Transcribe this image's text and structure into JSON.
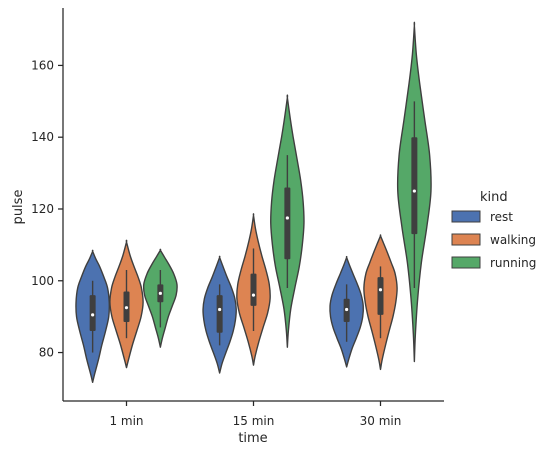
{
  "chart_data": {
    "type": "violin",
    "xlabel": "time",
    "ylabel": "pulse",
    "categories": [
      "1 min",
      "15 min",
      "30 min"
    ],
    "yticks": [
      80,
      100,
      120,
      140,
      160
    ],
    "ylim": [
      66.5,
      176
    ],
    "grid": false,
    "legend": {
      "title": "kind",
      "position": "right",
      "entries": [
        "rest",
        "walking",
        "running"
      ]
    },
    "colors": {
      "rest": "#4c72b0",
      "walking": "#dd8452",
      "running": "#55a868",
      "outline": "#3f3f3f"
    },
    "series": [
      {
        "name": "rest",
        "color": "#4c72b0",
        "violins": [
          {
            "category": "1 min",
            "min": 71.7,
            "max": 108.2,
            "whisker_low": 80,
            "q1": 86,
            "median": 90.5,
            "q3": 96,
            "whisker_high": 100,
            "profile": [
              [
                71.7,
                0
              ],
              [
                74,
                0.12
              ],
              [
                78,
                0.35
              ],
              [
                82,
                0.55
              ],
              [
                86,
                0.78
              ],
              [
                90,
                0.97
              ],
              [
                94,
                1.0
              ],
              [
                98,
                0.9
              ],
              [
                101,
                0.68
              ],
              [
                104,
                0.42
              ],
              [
                106,
                0.2
              ],
              [
                108.2,
                0
              ]
            ]
          },
          {
            "category": "15 min",
            "min": 74.3,
            "max": 106.5,
            "whisker_low": 82,
            "q1": 85.5,
            "median": 92,
            "q3": 96,
            "whisker_high": 99,
            "profile": [
              [
                74.3,
                0
              ],
              [
                77,
                0.15
              ],
              [
                80,
                0.38
              ],
              [
                83,
                0.62
              ],
              [
                86,
                0.82
              ],
              [
                89,
                0.95
              ],
              [
                92,
                1.0
              ],
              [
                95,
                0.92
              ],
              [
                98,
                0.72
              ],
              [
                101,
                0.45
              ],
              [
                104,
                0.2
              ],
              [
                106.5,
                0
              ]
            ]
          },
          {
            "category": "30 min",
            "min": 76.0,
            "max": 106.5,
            "whisker_low": 83,
            "q1": 88.5,
            "median": 92,
            "q3": 95,
            "whisker_high": 99,
            "profile": [
              [
                76,
                0
              ],
              [
                78,
                0.12
              ],
              [
                81,
                0.32
              ],
              [
                84,
                0.58
              ],
              [
                87,
                0.82
              ],
              [
                90,
                0.97
              ],
              [
                93,
                1.0
              ],
              [
                96,
                0.88
              ],
              [
                99,
                0.65
              ],
              [
                102,
                0.38
              ],
              [
                104.5,
                0.16
              ],
              [
                106.5,
                0
              ]
            ]
          }
        ]
      },
      {
        "name": "walking",
        "color": "#dd8452",
        "violins": [
          {
            "category": "1 min",
            "min": 75.8,
            "max": 110.8,
            "whisker_low": 84,
            "q1": 88.5,
            "median": 92.5,
            "q3": 97,
            "whisker_high": 103,
            "profile": [
              [
                75.8,
                0
              ],
              [
                78,
                0.12
              ],
              [
                82,
                0.35
              ],
              [
                86,
                0.62
              ],
              [
                90,
                0.88
              ],
              [
                94,
                1.0
              ],
              [
                98,
                0.9
              ],
              [
                101,
                0.7
              ],
              [
                104,
                0.45
              ],
              [
                107,
                0.22
              ],
              [
                110.8,
                0
              ]
            ]
          },
          {
            "category": "15 min",
            "min": 76.5,
            "max": 118.2,
            "whisker_low": 86,
            "q1": 93,
            "median": 96,
            "q3": 102,
            "whisker_high": 109,
            "profile": [
              [
                76.5,
                0
              ],
              [
                79,
                0.1
              ],
              [
                83,
                0.32
              ],
              [
                87,
                0.58
              ],
              [
                91,
                0.85
              ],
              [
                95,
                1.0
              ],
              [
                99,
                0.95
              ],
              [
                103,
                0.75
              ],
              [
                107,
                0.5
              ],
              [
                111,
                0.28
              ],
              [
                114.5,
                0.12
              ],
              [
                118.2,
                0
              ]
            ]
          },
          {
            "category": "30 min",
            "min": 75.3,
            "max": 112.5,
            "whisker_low": 84,
            "q1": 90.5,
            "median": 97.5,
            "q3": 101,
            "whisker_high": 104,
            "profile": [
              [
                75.3,
                0
              ],
              [
                78,
                0.1
              ],
              [
                82,
                0.3
              ],
              [
                86,
                0.52
              ],
              [
                90,
                0.75
              ],
              [
                94,
                0.92
              ],
              [
                98,
                1.0
              ],
              [
                102,
                0.88
              ],
              [
                105,
                0.65
              ],
              [
                108,
                0.4
              ],
              [
                110.5,
                0.18
              ],
              [
                112.5,
                0
              ]
            ]
          }
        ]
      },
      {
        "name": "running",
        "color": "#55a868",
        "violins": [
          {
            "category": "1 min",
            "min": 81.5,
            "max": 108.5,
            "whisker_low": 87,
            "q1": 94,
            "median": 96.5,
            "q3": 99,
            "whisker_high": 103,
            "profile": [
              [
                81.5,
                0
              ],
              [
                84,
                0.12
              ],
              [
                87,
                0.3
              ],
              [
                90,
                0.48
              ],
              [
                93,
                0.72
              ],
              [
                96,
                0.95
              ],
              [
                99,
                1.0
              ],
              [
                102,
                0.8
              ],
              [
                104.5,
                0.52
              ],
              [
                106.5,
                0.26
              ],
              [
                108.5,
                0
              ]
            ]
          },
          {
            "category": "15 min",
            "min": 81.5,
            "max": 151.0,
            "whisker_low": 98,
            "q1": 106,
            "median": 117.5,
            "q3": 126,
            "whisker_high": 135,
            "profile": [
              [
                81.5,
                0
              ],
              [
                86,
                0.06
              ],
              [
                92,
                0.2
              ],
              [
                98,
                0.45
              ],
              [
                104,
                0.72
              ],
              [
                110,
                0.9
              ],
              [
                116,
                1.0
              ],
              [
                122,
                0.95
              ],
              [
                128,
                0.8
              ],
              [
                134,
                0.58
              ],
              [
                140,
                0.35
              ],
              [
                145,
                0.18
              ],
              [
                151,
                0
              ]
            ]
          },
          {
            "category": "30 min",
            "min": 77.5,
            "max": 171.0,
            "whisker_low": 98,
            "q1": 113,
            "median": 125,
            "q3": 140,
            "whisker_high": 150,
            "profile": [
              [
                77.5,
                0
              ],
              [
                85,
                0.06
              ],
              [
                95,
                0.2
              ],
              [
                105,
                0.42
              ],
              [
                115,
                0.75
              ],
              [
                125,
                1.0
              ],
              [
                135,
                0.92
              ],
              [
                145,
                0.62
              ],
              [
                155,
                0.32
              ],
              [
                163,
                0.12
              ],
              [
                171,
                0
              ]
            ]
          }
        ]
      }
    ]
  }
}
